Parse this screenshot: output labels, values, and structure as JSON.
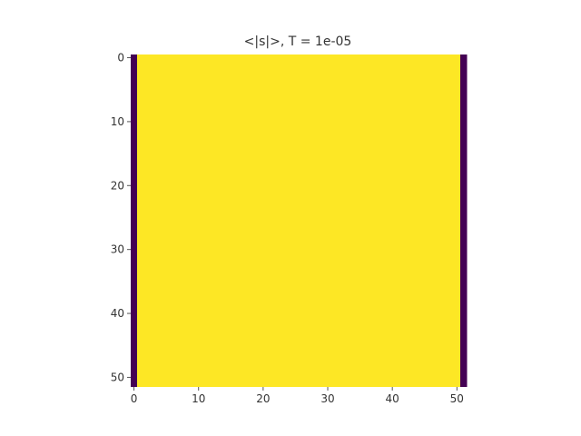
{
  "chart_data": {
    "type": "heatmap",
    "title": "<|s|>, T = 1e-05",
    "xlabel": "",
    "ylabel": "",
    "n_cols": 52,
    "n_rows": 52,
    "xlim": [
      -0.5,
      51.5
    ],
    "ylim": [
      51.5,
      -0.5
    ],
    "x_ticks": [
      0,
      10,
      20,
      30,
      40,
      50
    ],
    "y_ticks": [
      0,
      10,
      20,
      30,
      40,
      50
    ],
    "x_tick_labels": [
      "0",
      "10",
      "20",
      "30",
      "40",
      "50"
    ],
    "y_tick_labels": [
      "0",
      "10",
      "20",
      "30",
      "40",
      "50"
    ],
    "value_range": [
      0,
      1
    ],
    "column_values": [
      0,
      1,
      1,
      1,
      1,
      1,
      1,
      1,
      1,
      1,
      1,
      1,
      1,
      1,
      1,
      1,
      1,
      1,
      1,
      1,
      1,
      1,
      1,
      1,
      1,
      1,
      1,
      1,
      1,
      1,
      1,
      1,
      1,
      1,
      1,
      1,
      1,
      1,
      1,
      1,
      1,
      1,
      1,
      1,
      1,
      1,
      1,
      1,
      1,
      1,
      1,
      0
    ],
    "colormap": "viridis",
    "colors": {
      "low": "#440154",
      "high": "#fde725"
    },
    "grid": false,
    "legend": "none"
  }
}
